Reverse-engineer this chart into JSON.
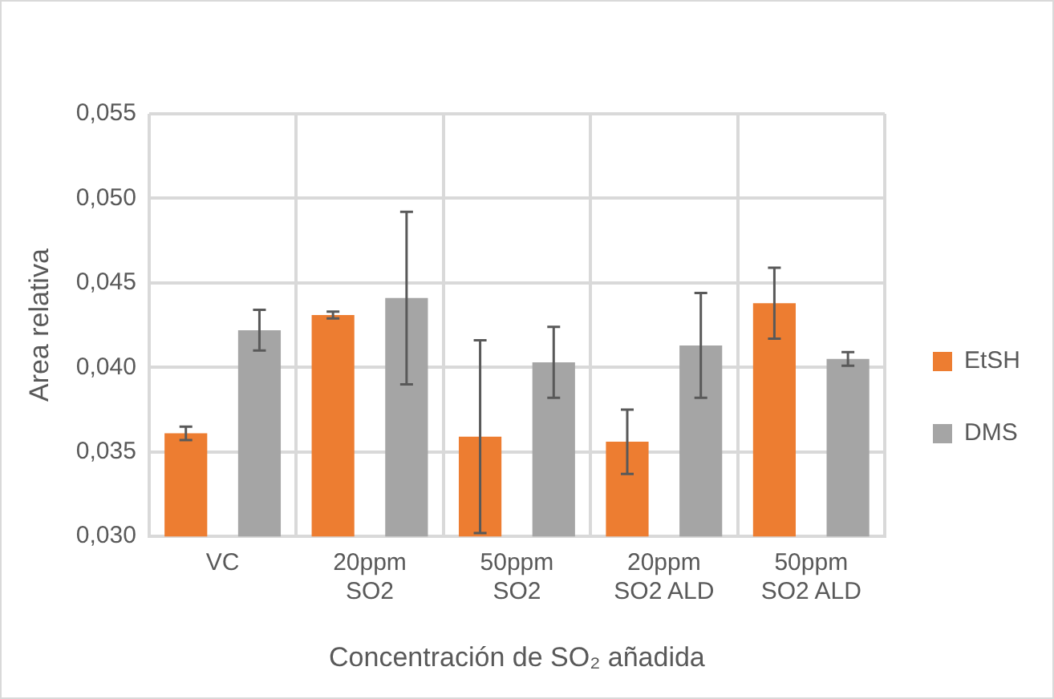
{
  "chart_data": {
    "type": "bar",
    "xlabel": "Concentración de SO₂ añadida",
    "ylabel": "Area relativa",
    "categories": [
      "VC",
      "20ppm SO2",
      "50ppm SO2",
      "20ppm SO2 ALD",
      "50ppm SO2 ALD"
    ],
    "series": [
      {
        "name": "EtSH",
        "color": "#ed7d31",
        "values": [
          0.0361,
          0.0431,
          0.0359,
          0.0356,
          0.0438
        ],
        "errors": [
          0.0004,
          0.0002,
          0.0057,
          0.0019,
          0.0021
        ]
      },
      {
        "name": "DMS",
        "color": "#a5a5a5",
        "values": [
          0.0422,
          0.0441,
          0.0403,
          0.0413,
          0.0405
        ],
        "errors": [
          0.0012,
          0.0051,
          0.0021,
          0.0031,
          0.0004
        ]
      }
    ],
    "ylim": [
      0.03,
      0.055
    ],
    "yticks": [
      {
        "value": 0.03,
        "label": "0,030"
      },
      {
        "value": 0.035,
        "label": "0,035"
      },
      {
        "value": 0.04,
        "label": "0,040"
      },
      {
        "value": 0.045,
        "label": "0,045"
      },
      {
        "value": 0.05,
        "label": "0,050"
      },
      {
        "value": 0.055,
        "label": "0,055"
      }
    ],
    "grid": true,
    "legend": "right"
  }
}
